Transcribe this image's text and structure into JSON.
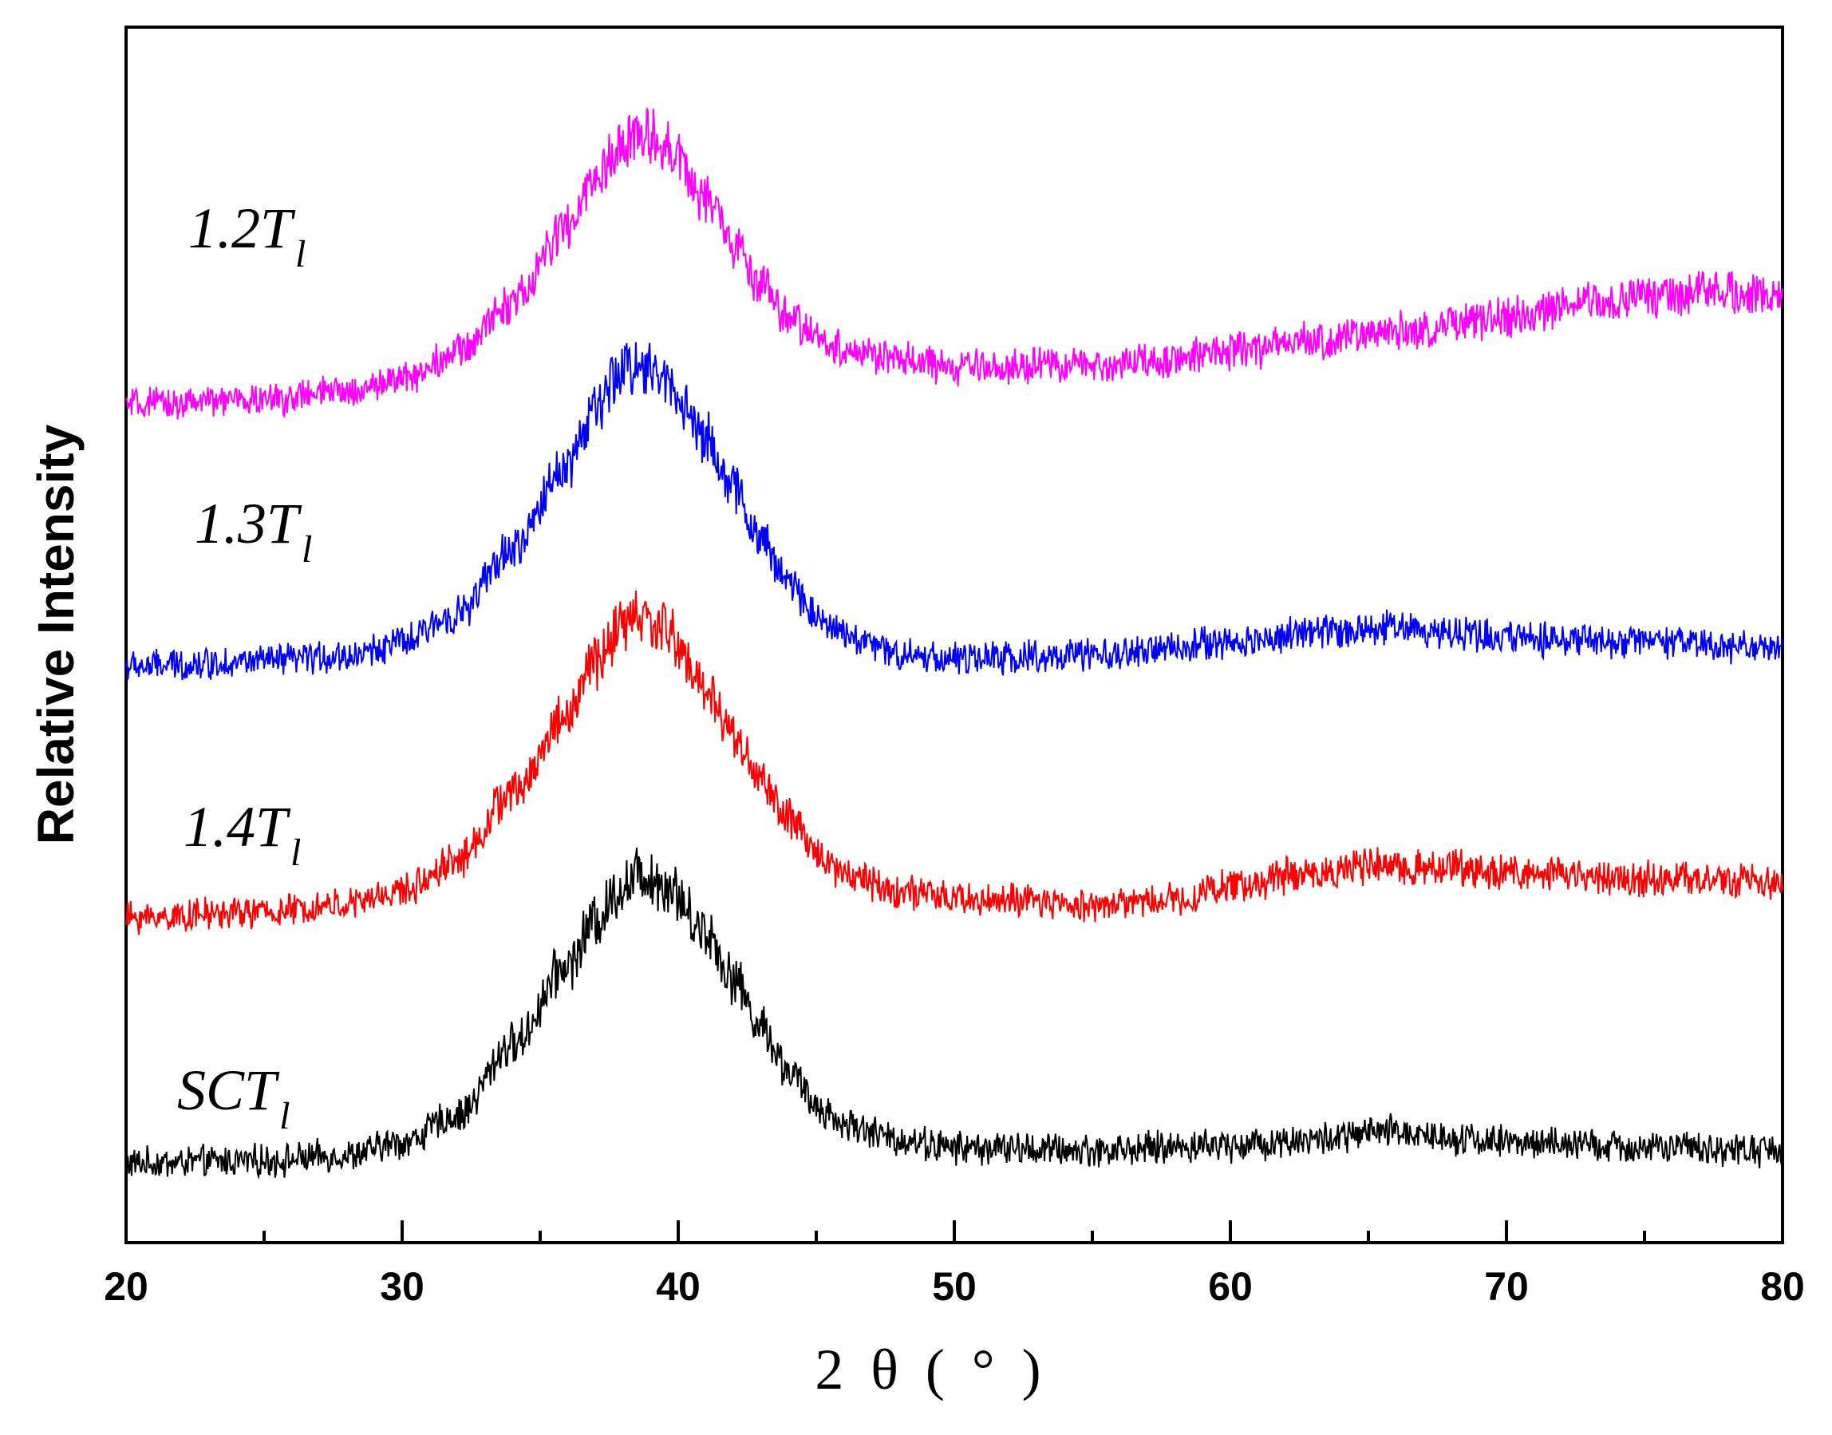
{
  "chart_data": {
    "type": "line",
    "title": "",
    "xlabel": "2θ(°)",
    "ylabel": "Relative Intensity",
    "xlim": [
      20,
      80
    ],
    "ylim": [
      0,
      4.6
    ],
    "x_ticks": [
      20,
      30,
      40,
      50,
      60,
      70,
      80
    ],
    "x_tick_labels": [
      "20",
      "30",
      "40",
      "50",
      "60",
      "70",
      "80"
    ],
    "x_minor_ticks": [
      25,
      35,
      45,
      55,
      65,
      75
    ],
    "y_ticks_shown": false,
    "grid": false,
    "legend": "inline labels at left of each curve",
    "series": [
      {
        "name": "SCT_l",
        "label_main": "SCT",
        "label_sub": "l",
        "color": "#000000",
        "points": [
          [
            20,
            0.3
          ],
          [
            25,
            0.31
          ],
          [
            28,
            0.33
          ],
          [
            30,
            0.38
          ],
          [
            32,
            0.48
          ],
          [
            34,
            0.75
          ],
          [
            36,
            1.05
          ],
          [
            37,
            1.22
          ],
          [
            38,
            1.35
          ],
          [
            38.7,
            1.4
          ],
          [
            39.5,
            1.36
          ],
          [
            41,
            1.18
          ],
          [
            42,
            1.0
          ],
          [
            43,
            0.82
          ],
          [
            44,
            0.65
          ],
          [
            45,
            0.52
          ],
          [
            46,
            0.45
          ],
          [
            48,
            0.39
          ],
          [
            50,
            0.36
          ],
          [
            55,
            0.35
          ],
          [
            60,
            0.37
          ],
          [
            63,
            0.39
          ],
          [
            66,
            0.42
          ],
          [
            68,
            0.4
          ],
          [
            70,
            0.38
          ],
          [
            75,
            0.36
          ],
          [
            80,
            0.35
          ]
        ]
      },
      {
        "name": "1.4T_l",
        "label_main": "1.4T",
        "label_sub": "l",
        "color": "#ff0000",
        "points": [
          [
            20,
            1.23
          ],
          [
            25,
            1.25
          ],
          [
            28,
            1.28
          ],
          [
            30,
            1.33
          ],
          [
            32,
            1.45
          ],
          [
            34,
            1.7
          ],
          [
            36,
            2.0
          ],
          [
            37,
            2.2
          ],
          [
            38,
            2.33
          ],
          [
            38.5,
            2.37
          ],
          [
            39.5,
            2.32
          ],
          [
            41,
            2.1
          ],
          [
            42,
            1.92
          ],
          [
            43,
            1.75
          ],
          [
            44,
            1.6
          ],
          [
            45,
            1.48
          ],
          [
            46,
            1.4
          ],
          [
            48,
            1.33
          ],
          [
            50,
            1.3
          ],
          [
            55,
            1.28
          ],
          [
            58,
            1.3
          ],
          [
            60,
            1.35
          ],
          [
            63,
            1.4
          ],
          [
            65,
            1.42
          ],
          [
            68,
            1.42
          ],
          [
            70,
            1.4
          ],
          [
            75,
            1.38
          ],
          [
            80,
            1.36
          ]
        ]
      },
      {
        "name": "1.3T_l",
        "label_main": "1.3T",
        "label_sub": "l",
        "color": "#0000ff",
        "points": [
          [
            20,
            2.18
          ],
          [
            25,
            2.2
          ],
          [
            28,
            2.22
          ],
          [
            30,
            2.27
          ],
          [
            32,
            2.38
          ],
          [
            34,
            2.62
          ],
          [
            36,
            2.95
          ],
          [
            37,
            3.15
          ],
          [
            38,
            3.3
          ],
          [
            38.5,
            3.33
          ],
          [
            39.5,
            3.27
          ],
          [
            41,
            3.05
          ],
          [
            42,
            2.85
          ],
          [
            43,
            2.66
          ],
          [
            44,
            2.5
          ],
          [
            45,
            2.38
          ],
          [
            46,
            2.3
          ],
          [
            48,
            2.23
          ],
          [
            50,
            2.21
          ],
          [
            55,
            2.22
          ],
          [
            60,
            2.27
          ],
          [
            63,
            2.31
          ],
          [
            66,
            2.33
          ],
          [
            68,
            2.31
          ],
          [
            70,
            2.29
          ],
          [
            75,
            2.27
          ],
          [
            80,
            2.25
          ]
        ]
      },
      {
        "name": "1.2T_l",
        "label_main": "1.2T",
        "label_sub": "l",
        "color": "#ff00ff",
        "points": [
          [
            20,
            3.17
          ],
          [
            25,
            3.19
          ],
          [
            28,
            3.22
          ],
          [
            30,
            3.27
          ],
          [
            32,
            3.37
          ],
          [
            34,
            3.56
          ],
          [
            36,
            3.84
          ],
          [
            37,
            4.02
          ],
          [
            38,
            4.15
          ],
          [
            38.7,
            4.2
          ],
          [
            39.5,
            4.16
          ],
          [
            41,
            3.95
          ],
          [
            42,
            3.78
          ],
          [
            43,
            3.62
          ],
          [
            44,
            3.5
          ],
          [
            45,
            3.43
          ],
          [
            46,
            3.38
          ],
          [
            48,
            3.34
          ],
          [
            50,
            3.31
          ],
          [
            55,
            3.32
          ],
          [
            60,
            3.37
          ],
          [
            63,
            3.41
          ],
          [
            66,
            3.45
          ],
          [
            70,
            3.5
          ],
          [
            73,
            3.56
          ],
          [
            75,
            3.58
          ],
          [
            78,
            3.6
          ],
          [
            80,
            3.58
          ]
        ]
      }
    ]
  }
}
